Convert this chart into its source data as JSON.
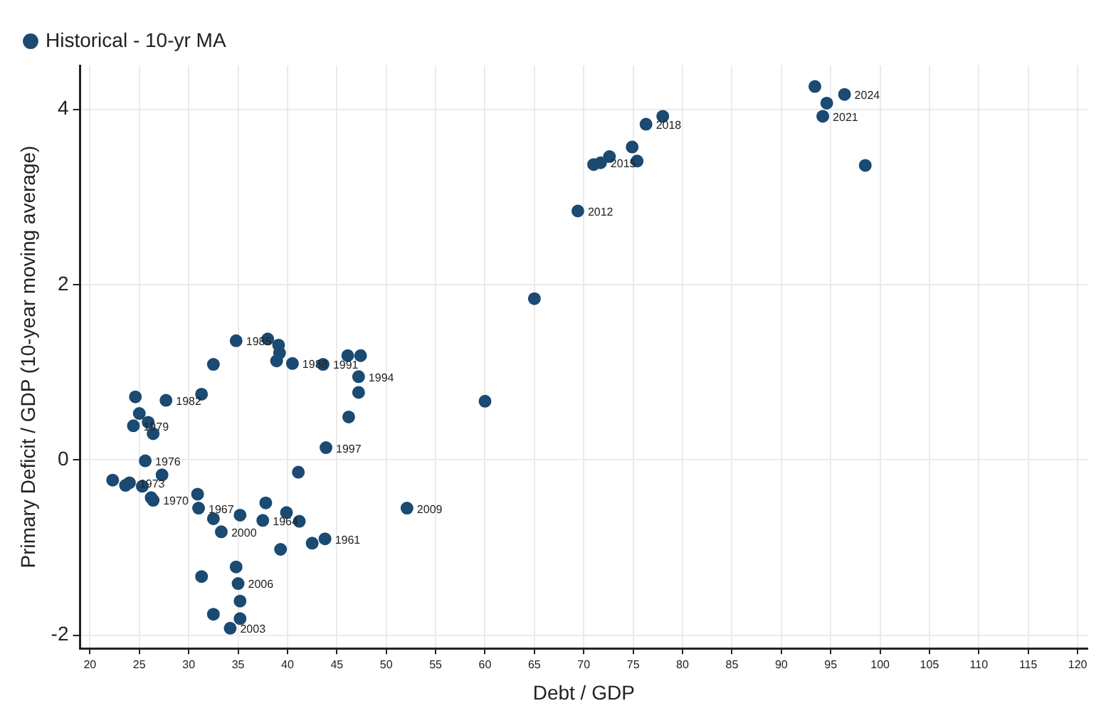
{
  "chart_data": {
    "type": "scatter",
    "xlabel": "Debt / GDP",
    "ylabel": "Primary Deficit / GDP (10-year moving average)",
    "xlim": [
      19,
      121
    ],
    "ylim": [
      -2.15,
      4.5
    ],
    "xticks": [
      20,
      25,
      30,
      35,
      40,
      45,
      50,
      55,
      60,
      65,
      70,
      75,
      80,
      85,
      90,
      95,
      100,
      105,
      110,
      115,
      120
    ],
    "yticks": [
      -2,
      0,
      2,
      4
    ],
    "grid": true,
    "legend": "top left",
    "marker": "circle",
    "series": [
      {
        "name": "Historical - 10-yr MA",
        "color": "#1b4a72",
        "x": [
          34.8,
          38.0,
          39.1,
          39.2,
          38.9,
          40.5,
          43.6,
          32.5,
          24.6,
          27.7,
          31.3,
          25.0,
          24.4,
          25.9,
          26.4,
          25.6,
          43.9,
          41.1,
          27.3,
          22.3,
          23.6,
          24.0,
          25.3,
          26.2,
          26.4,
          30.9,
          31.0,
          32.5,
          35.2,
          37.8,
          37.5,
          39.9,
          41.2,
          33.3,
          39.3,
          42.5,
          43.8,
          34.8,
          31.3,
          35.0,
          35.2,
          32.5,
          35.2,
          34.2,
          46.1,
          47.4,
          47.2,
          47.2,
          46.2,
          60.0,
          52.1,
          65.0,
          69.4,
          71.0,
          71.7,
          72.6,
          74.9,
          75.4,
          76.3,
          78.0,
          93.4,
          94.6,
          96.4,
          94.2,
          98.5
        ],
        "values": [
          1.36,
          1.38,
          1.31,
          1.22,
          1.13,
          1.1,
          1.09,
          1.09,
          0.72,
          0.68,
          0.75,
          0.53,
          0.39,
          0.43,
          0.3,
          -0.01,
          0.14,
          -0.14,
          -0.17,
          -0.23,
          -0.29,
          -0.26,
          -0.3,
          -0.43,
          -0.46,
          -0.39,
          -0.55,
          -0.67,
          -0.63,
          -0.49,
          -0.69,
          -0.6,
          -0.7,
          -0.82,
          -1.02,
          -0.95,
          -0.9,
          -1.22,
          -1.33,
          -1.41,
          -1.61,
          -1.76,
          -1.81,
          -1.92,
          1.19,
          1.19,
          0.95,
          0.77,
          0.49,
          0.67,
          -0.55,
          1.84,
          2.84,
          3.37,
          3.39,
          3.46,
          3.57,
          3.41,
          3.83,
          3.92,
          4.26,
          4.07,
          4.17,
          3.92,
          3.36
        ]
      }
    ],
    "annotations": [
      {
        "text": "1961",
        "x": 43.8,
        "y": -0.9
      },
      {
        "text": "1964",
        "x": 37.5,
        "y": -0.69
      },
      {
        "text": "1967",
        "x": 31.0,
        "y": -0.55
      },
      {
        "text": "1970",
        "x": 26.4,
        "y": -0.46
      },
      {
        "text": "1973",
        "x": 24.0,
        "y": -0.26
      },
      {
        "text": "1976",
        "x": 25.6,
        "y": -0.01
      },
      {
        "text": "1979",
        "x": 24.4,
        "y": 0.39
      },
      {
        "text": "1982",
        "x": 27.7,
        "y": 0.68
      },
      {
        "text": "1985",
        "x": 34.8,
        "y": 1.36
      },
      {
        "text": "1988",
        "x": 40.5,
        "y": 1.1
      },
      {
        "text": "1991",
        "x": 43.6,
        "y": 1.09
      },
      {
        "text": "1994",
        "x": 47.2,
        "y": 0.95
      },
      {
        "text": "1997",
        "x": 43.9,
        "y": 0.14
      },
      {
        "text": "2000",
        "x": 33.3,
        "y": -0.82
      },
      {
        "text": "2003",
        "x": 34.2,
        "y": -1.92
      },
      {
        "text": "2006",
        "x": 35.0,
        "y": -1.41
      },
      {
        "text": "2009",
        "x": 52.1,
        "y": -0.55
      },
      {
        "text": "2012",
        "x": 69.4,
        "y": 2.84
      },
      {
        "text": "2015",
        "x": 71.7,
        "y": 3.39
      },
      {
        "text": "2018",
        "x": 76.3,
        "y": 3.83
      },
      {
        "text": "2021",
        "x": 94.2,
        "y": 3.92
      },
      {
        "text": "2024",
        "x": 96.4,
        "y": 4.17
      }
    ]
  }
}
